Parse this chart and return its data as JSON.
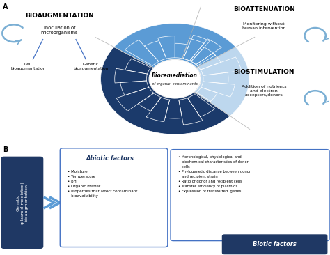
{
  "title_a": "A",
  "title_b": "B",
  "center_text1": "Bioremediation",
  "center_text2": "of organic  contaminants",
  "bioaug_title": "BIOAUGMENTATION",
  "bioaug_sub": "Inoculation of\nmicroorganisms",
  "bioaug_left": "Cell\nbioaugmentation",
  "bioaug_right": "Genetic\nbioaugmentation",
  "bioatt_title": "BIOATTENUATION",
  "bioatt_sub": "Monitoring without\nhuman intervention",
  "biostim_title": "BIOSTIMULATION",
  "biostim_sub": "Addition of nutrients\nand electron\nacceptors/donors",
  "genetic_text": "Genetic\n(plasmid-mediated)\nbioaugmentation",
  "abiotic_title": "Abiotic factors",
  "abiotic_items": "• Moisture\n• Temperature\n• pH\n• Organic matter\n• Properties that affect contaminant\n   bioavailability",
  "biotic_title": "Biotic factors",
  "biotic_items": "• Morphological, physiological and\n   biochemical characteristics of donor\n   cells\n• Phylogenetic distance between donor\n   and recipient strain\n• Ratio of donor and recipient cells\n• Transfer efficiency of plasmids\n• Expression of transferred  genes",
  "dark_blue": "#1b3a6b",
  "mid_blue": "#5b9bd5",
  "light_blue": "#9dc3e6",
  "lighter_blue": "#bdd7ee",
  "box_border_blue": "#4472c4",
  "arrow_blue": "#7bafd4",
  "dark_navy": "#1f3864",
  "bg_color": "#ffffff"
}
